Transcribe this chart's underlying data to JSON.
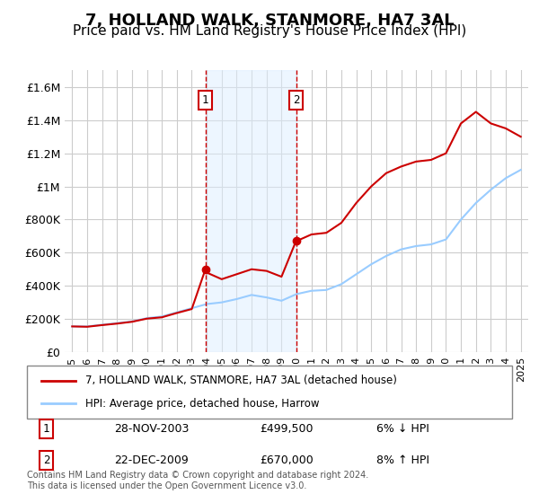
{
  "title": "7, HOLLAND WALK, STANMORE, HA7 3AL",
  "subtitle": "Price paid vs. HM Land Registry's House Price Index (HPI)",
  "title_fontsize": 13,
  "subtitle_fontsize": 11,
  "ylabel": "",
  "xlabel": "",
  "ylim": [
    0,
    1700000
  ],
  "yticks": [
    0,
    200000,
    400000,
    600000,
    800000,
    1000000,
    1200000,
    1400000,
    1600000
  ],
  "ytick_labels": [
    "£0",
    "£200K",
    "£400K",
    "£600K",
    "£800K",
    "£1M",
    "£1.2M",
    "£1.4M",
    "£1.6M"
  ],
  "xlim_start": 1994.5,
  "xlim_end": 2025.5,
  "background_color": "#ffffff",
  "plot_bg_color": "#ffffff",
  "grid_color": "#cccccc",
  "line1_color": "#cc0000",
  "line2_color": "#99ccff",
  "sale1_x": 2003.91,
  "sale1_y": 499500,
  "sale2_x": 2009.97,
  "sale2_y": 670000,
  "vline1_x": 2003.91,
  "vline2_x": 2009.97,
  "shade_color": "#ddeeff",
  "shade_alpha": 0.5,
  "legend_line1": "7, HOLLAND WALK, STANMORE, HA7 3AL (detached house)",
  "legend_line2": "HPI: Average price, detached house, Harrow",
  "note1_label": "1",
  "note1_date": "28-NOV-2003",
  "note1_price": "£499,500",
  "note1_hpi": "6% ↓ HPI",
  "note2_label": "2",
  "note2_date": "22-DEC-2009",
  "note2_price": "£670,000",
  "note2_hpi": "8% ↑ HPI",
  "footnote": "Contains HM Land Registry data © Crown copyright and database right 2024.\nThis data is licensed under the Open Government Licence v3.0.",
  "hpi_years": [
    1995,
    1996,
    1997,
    1998,
    1999,
    2000,
    2001,
    2002,
    2003,
    2004,
    2005,
    2006,
    2007,
    2008,
    2009,
    2010,
    2011,
    2012,
    2013,
    2014,
    2015,
    2016,
    2017,
    2018,
    2019,
    2020,
    2021,
    2022,
    2023,
    2024,
    2025
  ],
  "hpi_values": [
    155000,
    155000,
    165000,
    175000,
    185000,
    205000,
    215000,
    240000,
    265000,
    290000,
    300000,
    320000,
    345000,
    330000,
    310000,
    350000,
    370000,
    375000,
    410000,
    470000,
    530000,
    580000,
    620000,
    640000,
    650000,
    680000,
    800000,
    900000,
    980000,
    1050000,
    1100000
  ],
  "prop_years": [
    1995,
    1996,
    1997,
    1998,
    1999,
    2000,
    2001,
    2002,
    2003,
    2003.91,
    2004,
    2005,
    2006,
    2007,
    2008,
    2009,
    2009.97,
    2010,
    2011,
    2012,
    2013,
    2014,
    2015,
    2016,
    2017,
    2018,
    2019,
    2020,
    2021,
    2022,
    2023,
    2024,
    2025
  ],
  "prop_values": [
    155000,
    153000,
    163000,
    172000,
    183000,
    202000,
    210000,
    236000,
    260000,
    499500,
    480000,
    440000,
    470000,
    500000,
    490000,
    455000,
    670000,
    670000,
    710000,
    720000,
    780000,
    900000,
    1000000,
    1080000,
    1120000,
    1150000,
    1160000,
    1200000,
    1380000,
    1450000,
    1380000,
    1350000,
    1300000
  ]
}
